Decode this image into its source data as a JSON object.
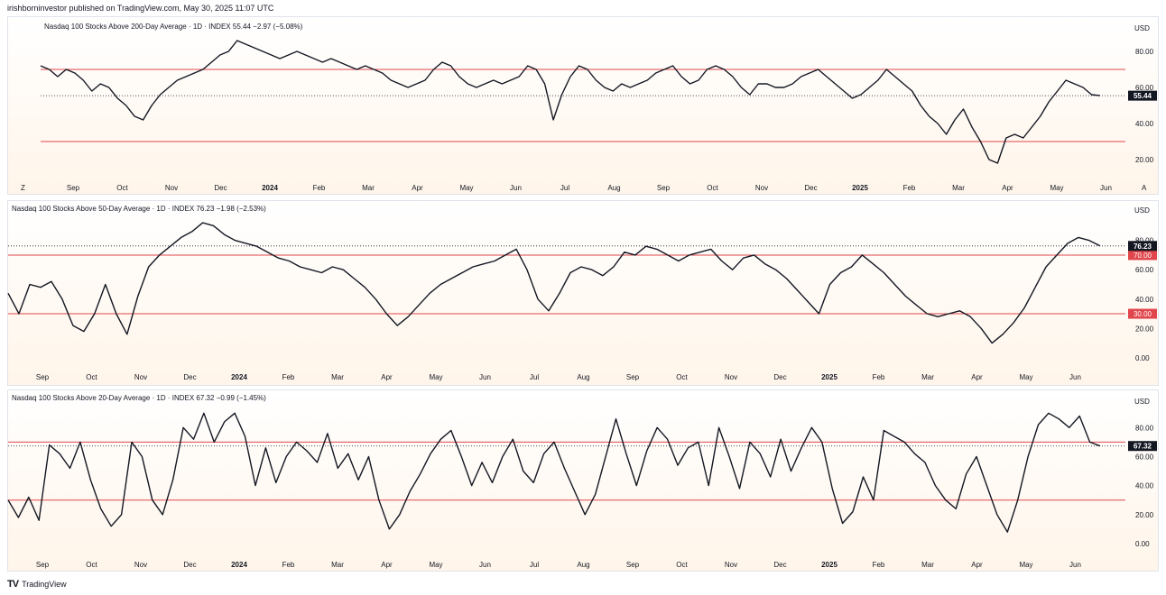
{
  "header": {
    "text": "irishborninvestor published on TradingView.com, May 30, 2025 11:07 UTC"
  },
  "footer": {
    "brand": "TradingView"
  },
  "colors": {
    "line": "#131722",
    "ref_line": "#e0464b",
    "label_bg_last": "#131722",
    "label_bg_ref": "#e0464b"
  },
  "months": [
    "Sep",
    "Oct",
    "Nov",
    "Dec",
    "2024",
    "Feb",
    "Mar",
    "Apr",
    "May",
    "Jun",
    "Jul",
    "Aug",
    "Sep",
    "Oct",
    "Nov",
    "Dec",
    "2025",
    "Feb",
    "Mar",
    "Apr",
    "May",
    "Jun"
  ],
  "chart_data": [
    {
      "type": "line",
      "title": "Nasdaq 100 Stocks Above 200-Day Average · 1D · INDEX",
      "last": "55.44",
      "change": "−2.97 (−5.08%)",
      "currency": "USD",
      "yticks": [
        "80.00",
        "60.00",
        "40.00",
        "20.00"
      ],
      "ytick_values": [
        80,
        60,
        40,
        20
      ],
      "ylim": [
        8,
        90
      ],
      "ref_lines": [
        70,
        30
      ],
      "ref_labels": [],
      "last_value": 55.44,
      "extra_axis": {
        "left": "Z",
        "right": "A"
      },
      "x_range": [
        0,
        1000
      ],
      "values": [
        72,
        70,
        66,
        70,
        68,
        64,
        58,
        62,
        60,
        54,
        50,
        44,
        42,
        50,
        56,
        60,
        64,
        66,
        68,
        70,
        74,
        78,
        80,
        86,
        84,
        82,
        80,
        78,
        76,
        78,
        80,
        78,
        76,
        74,
        76,
        74,
        72,
        70,
        72,
        70,
        68,
        64,
        62,
        60,
        62,
        64,
        70,
        74,
        72,
        66,
        62,
        60,
        62,
        64,
        62,
        64,
        66,
        72,
        70,
        62,
        42,
        56,
        66,
        72,
        70,
        64,
        60,
        58,
        62,
        60,
        62,
        64,
        68,
        70,
        72,
        66,
        62,
        64,
        70,
        72,
        70,
        66,
        60,
        56,
        62,
        62,
        60,
        60,
        62,
        66,
        68,
        70,
        66,
        62,
        58,
        54,
        56,
        60,
        64,
        70,
        66,
        62,
        58,
        50,
        44,
        40,
        34,
        42,
        48,
        38,
        30,
        20,
        18,
        32,
        34,
        32,
        38,
        44,
        52,
        58,
        64,
        62,
        60,
        56,
        55.44
      ]
    },
    {
      "type": "line",
      "title": "Nasdaq 100 Stocks Above 50-Day Average · 1D · INDEX",
      "last": "76.23",
      "change": "−1.98 (−2.53%)",
      "currency": "USD",
      "yticks": [
        "80.00",
        "60.00",
        "40.00",
        "20.00",
        "0.00"
      ],
      "ytick_values": [
        80,
        60,
        40,
        20,
        0
      ],
      "ylim": [
        -5,
        97
      ],
      "ref_lines": [
        70,
        30
      ],
      "ref_labels": [
        "70.00",
        "30.00"
      ],
      "last_value": 76.23,
      "extra_axis": {
        "left": "",
        "right": ""
      },
      "x_range": [
        0,
        1000
      ],
      "values": [
        44,
        30,
        50,
        48,
        52,
        40,
        22,
        18,
        30,
        50,
        30,
        16,
        42,
        62,
        70,
        76,
        82,
        86,
        92,
        90,
        84,
        80,
        78,
        76,
        72,
        68,
        66,
        62,
        60,
        58,
        62,
        60,
        54,
        48,
        40,
        30,
        22,
        28,
        36,
        44,
        50,
        54,
        58,
        62,
        64,
        66,
        70,
        74,
        60,
        40,
        32,
        44,
        58,
        62,
        60,
        56,
        62,
        72,
        70,
        76,
        74,
        70,
        66,
        70,
        72,
        74,
        66,
        60,
        68,
        70,
        64,
        60,
        54,
        46,
        38,
        30,
        50,
        58,
        62,
        70,
        64,
        58,
        50,
        42,
        36,
        30,
        28,
        30,
        32,
        28,
        20,
        10,
        16,
        24,
        34,
        48,
        62,
        70,
        78,
        82,
        80,
        76.23
      ]
    },
    {
      "type": "line",
      "title": "Nasdaq 100 Stocks Above 20-Day Average · 1D · INDEX",
      "last": "67.32",
      "change": "−0.99 (−1.45%)",
      "currency": "USD",
      "yticks": [
        "80.00",
        "60.00",
        "40.00",
        "20.00",
        "0.00"
      ],
      "ytick_values": [
        80,
        60,
        40,
        20,
        0
      ],
      "ylim": [
        -5,
        97
      ],
      "ref_lines": [
        70,
        30
      ],
      "ref_labels": [],
      "last_value": 67.32,
      "extra_axis": {
        "left": "",
        "right": ""
      },
      "x_range": [
        0,
        1000
      ],
      "values": [
        30,
        18,
        32,
        16,
        68,
        62,
        52,
        70,
        44,
        24,
        12,
        20,
        70,
        60,
        30,
        20,
        44,
        80,
        72,
        90,
        70,
        84,
        90,
        74,
        40,
        66,
        42,
        60,
        70,
        64,
        56,
        76,
        52,
        62,
        44,
        60,
        30,
        10,
        20,
        36,
        48,
        62,
        72,
        78,
        60,
        40,
        56,
        42,
        60,
        72,
        50,
        42,
        62,
        70,
        52,
        36,
        20,
        34,
        60,
        86,
        62,
        40,
        64,
        80,
        72,
        54,
        66,
        70,
        40,
        80,
        60,
        38,
        70,
        62,
        46,
        72,
        50,
        66,
        80,
        70,
        38,
        14,
        22,
        46,
        30,
        78,
        74,
        70,
        62,
        56,
        40,
        30,
        24,
        48,
        60,
        40,
        20,
        8,
        30,
        60,
        82,
        90,
        86,
        80,
        88,
        70,
        67.32
      ]
    }
  ]
}
